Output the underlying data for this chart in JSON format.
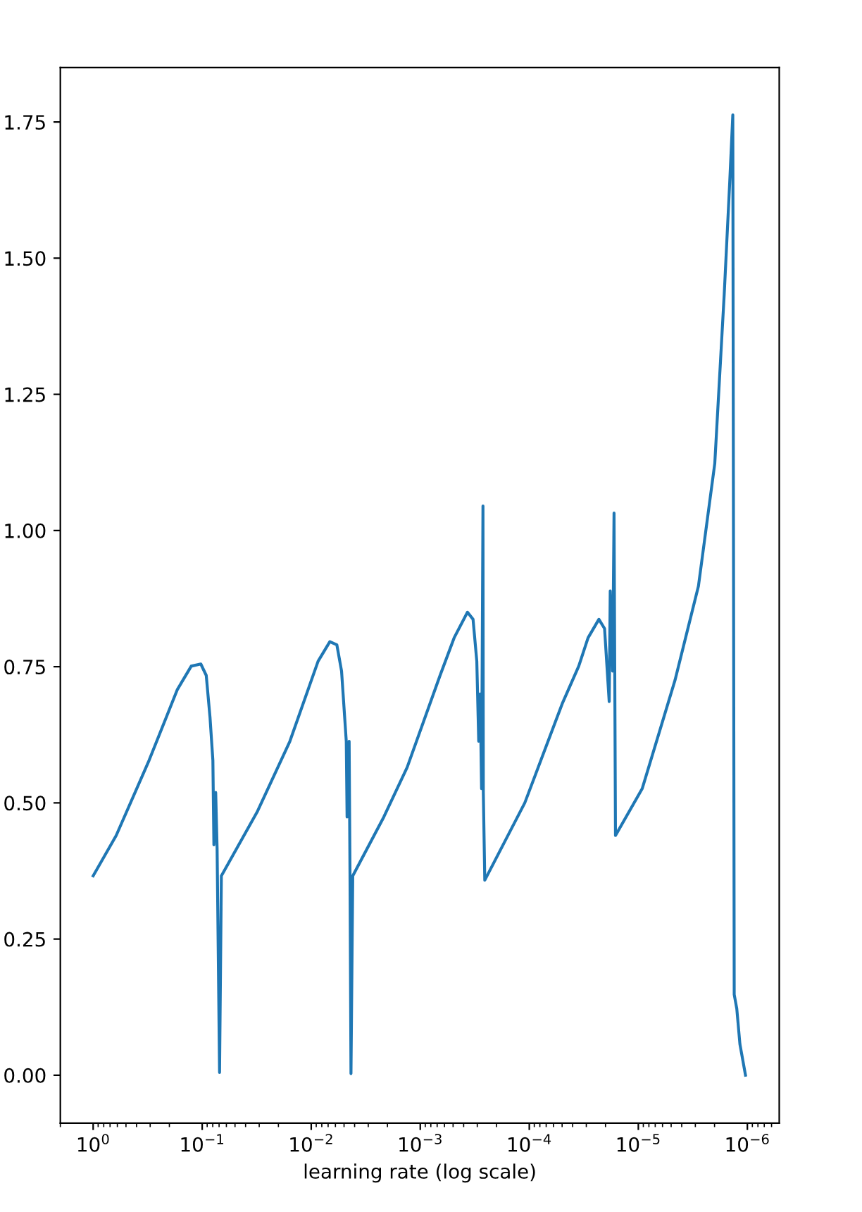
{
  "chart_data": {
    "type": "line",
    "xlabel": "learning rate (log scale)",
    "log": "x",
    "xlim": [
      2.0,
      5.1e-07
    ],
    "xticks": [
      {
        "value": 1,
        "label": "10$^{0}$"
      },
      {
        "value": 0.1,
        "label": "10$^{−1}$"
      },
      {
        "value": 0.01,
        "label": "10$^{−2}$"
      },
      {
        "value": 0.001,
        "label": "10$^{−3}$"
      },
      {
        "value": 0.0001,
        "label": "10$^{−4}$"
      },
      {
        "value": 1e-05,
        "label": "10$^{−5}$"
      },
      {
        "value": 1e-06,
        "label": "10$^{−6}$"
      }
    ],
    "ylim": [
      -0.088,
      1.85
    ],
    "yticks": [
      {
        "value": 0,
        "label": "0.00"
      },
      {
        "value": 0.25,
        "label": "0.25"
      },
      {
        "value": 0.5,
        "label": "0.50"
      },
      {
        "value": 0.75,
        "label": "0.75"
      },
      {
        "value": 1.0,
        "label": "1.00"
      },
      {
        "value": 1.25,
        "label": "1.25"
      },
      {
        "value": 1.5,
        "label": "1.50"
      },
      {
        "value": 1.75,
        "label": "1.75"
      }
    ],
    "grid": false,
    "legend": false,
    "marker": "none",
    "line_style": "solid",
    "series": [
      {
        "color": "#1f77b4",
        "x": [
          1,
          0.615,
          0.307,
          0.169,
          0.126,
          0.103,
          0.0918,
          0.0847,
          0.0798,
          0.0781,
          0.0752,
          0.073,
          0.0693,
          0.0667,
          0.0314,
          0.0157,
          0.00865,
          0.00675,
          0.00582,
          0.00527,
          0.00477,
          0.00469,
          0.00449,
          0.00441,
          0.00432,
          0.00416,
          0.00216,
          0.00132,
          0.000658,
          0.000489,
          0.000369,
          0.000328,
          0.000303,
          0.000291,
          0.000282,
          0.000274,
          0.000266,
          0.000264,
          0.000256,
          0.00011,
          4.99e-05,
          3.52e-05,
          2.89e-05,
          2.3e-05,
          2.04e-05,
          1.85e-05,
          1.81e-05,
          1.72e-05,
          1.67e-05,
          1.62e-05,
          9.22e-06,
          4.61e-06,
          2.81e-06,
          1.99e-06,
          1.63e-06,
          1.45e-06,
          1.36e-06,
          1.32e-06,
          1.25e-06,
          1.17e-06,
          1.04e-06
        ],
        "values": [
          0.366,
          0.44,
          0.578,
          0.708,
          0.751,
          0.755,
          0.734,
          0.656,
          0.578,
          0.423,
          0.519,
          0.417,
          0.005,
          0.366,
          0.483,
          0.613,
          0.76,
          0.796,
          0.79,
          0.742,
          0.613,
          0.474,
          0.613,
          0.371,
          0.003,
          0.366,
          0.474,
          0.565,
          0.734,
          0.803,
          0.85,
          0.837,
          0.76,
          0.613,
          0.7,
          0.526,
          1.045,
          0.519,
          0.358,
          0.5,
          0.682,
          0.751,
          0.803,
          0.837,
          0.82,
          0.686,
          0.889,
          0.742,
          1.032,
          0.44,
          0.526,
          0.725,
          0.898,
          1.123,
          1.434,
          1.641,
          1.763,
          0.148,
          0.122,
          0.057,
          0.0
        ]
      }
    ]
  }
}
